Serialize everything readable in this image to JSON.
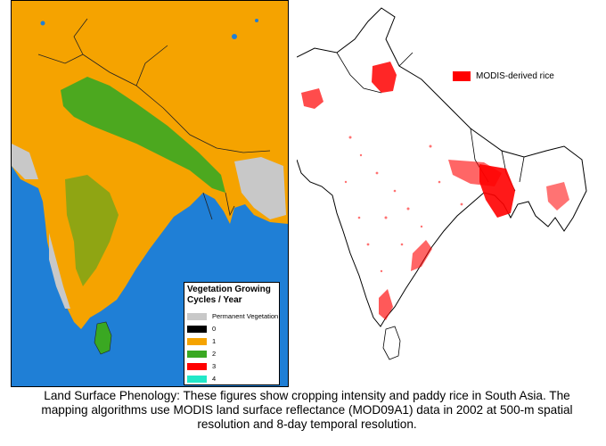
{
  "left_map": {
    "legend": {
      "title": "Vegetation Growing Cycles / Year",
      "items": [
        {
          "label": "Permanent Vegetation",
          "color": "#c8c8c8"
        },
        {
          "label": "0",
          "color": "#000000"
        },
        {
          "label": "1",
          "color": "#f5a300"
        },
        {
          "label": "2",
          "color": "#3aa822"
        },
        {
          "label": "3",
          "color": "#ff0000"
        },
        {
          "label": "4",
          "color": "#22e8c8"
        }
      ]
    }
  },
  "right_map": {
    "legend": {
      "label": "MODIS-derived rice",
      "color": "#ff0000"
    }
  },
  "caption": "Land Surface Phenology: These figures show cropping intensity and paddy rice in South Asia. The mapping algorithms use MODIS land surface reflectance (MOD09A1) data in 2002 at 500-m spatial resolution and 8-day temporal resolution."
}
